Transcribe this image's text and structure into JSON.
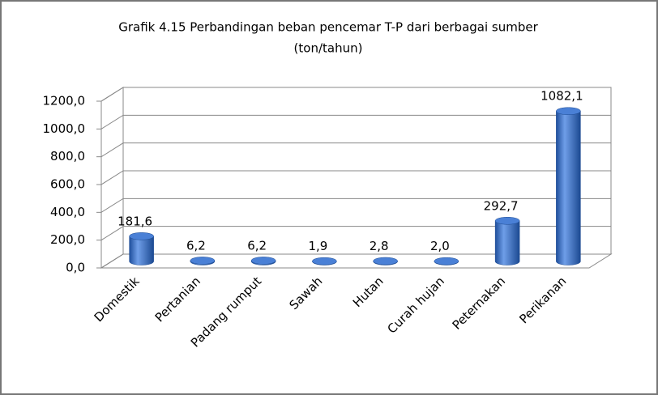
{
  "chart_data": {
    "type": "bar",
    "title": "Grafik 4.15 Perbandingan beban pencemar T-P  dari berbagai sumber",
    "subtitle": "(ton/tahun)",
    "categories": [
      "Domestik",
      "Pertanian",
      "Padang rumput",
      "Sawah",
      "Hutan",
      "Curah hujan",
      "Peternakan",
      "Perikanan"
    ],
    "values": [
      181.6,
      6.2,
      6.2,
      1.9,
      2.8,
      2.0,
      292.7,
      1082.1
    ],
    "value_labels": [
      "181,6",
      "6,2",
      "6,2",
      "1,9",
      "2,8",
      "2,0",
      "292,7",
      "1082,1"
    ],
    "color": "#3a6fc4",
    "ylim": [
      0,
      1200
    ],
    "yticks": [
      {
        "value": 0,
        "label": "0,0"
      },
      {
        "value": 200,
        "label": "200,0"
      },
      {
        "value": 400,
        "label": "400,0"
      },
      {
        "value": 600,
        "label": "600,0"
      },
      {
        "value": 800,
        "label": "800,0"
      },
      {
        "value": 1000,
        "label": "1000,0"
      },
      {
        "value": 1200,
        "label": "1200,0"
      }
    ],
    "grid": true
  }
}
